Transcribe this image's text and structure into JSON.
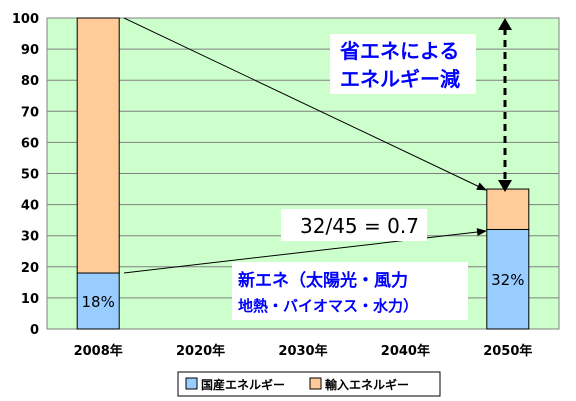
{
  "chart_data": {
    "type": "bar",
    "stacked": true,
    "categories": [
      "2008年",
      "2020年",
      "2030年",
      "2040年",
      "2050年"
    ],
    "series": [
      {
        "name": "国産エネルギー",
        "color": "#99CCFF",
        "values": [
          18,
          null,
          null,
          null,
          32
        ]
      },
      {
        "name": "輸入エネルギー",
        "color": "#FFCC99",
        "values": [
          82,
          null,
          null,
          null,
          13
        ]
      }
    ],
    "ylim": [
      0,
      100
    ],
    "yticks": [
      0,
      10,
      20,
      30,
      40,
      50,
      60,
      70,
      80,
      90,
      100
    ],
    "grid": true,
    "plot_background": "#CCFFCC",
    "legend_position": "bottom",
    "bar_labels": [
      "18%",
      "",
      "",
      "",
      "32%"
    ],
    "annotations": {
      "ratio": "32/45 = 0.7",
      "saving_line1": "省エネによる",
      "saving_line2": "エネルギー減",
      "renewables_line1": "新エネ（太陽光・風力",
      "renewables_line2": "地熱・バイオマス・水力）"
    },
    "colors": {
      "annotation_blue": "#0000FF",
      "arrow": "#000000"
    }
  }
}
